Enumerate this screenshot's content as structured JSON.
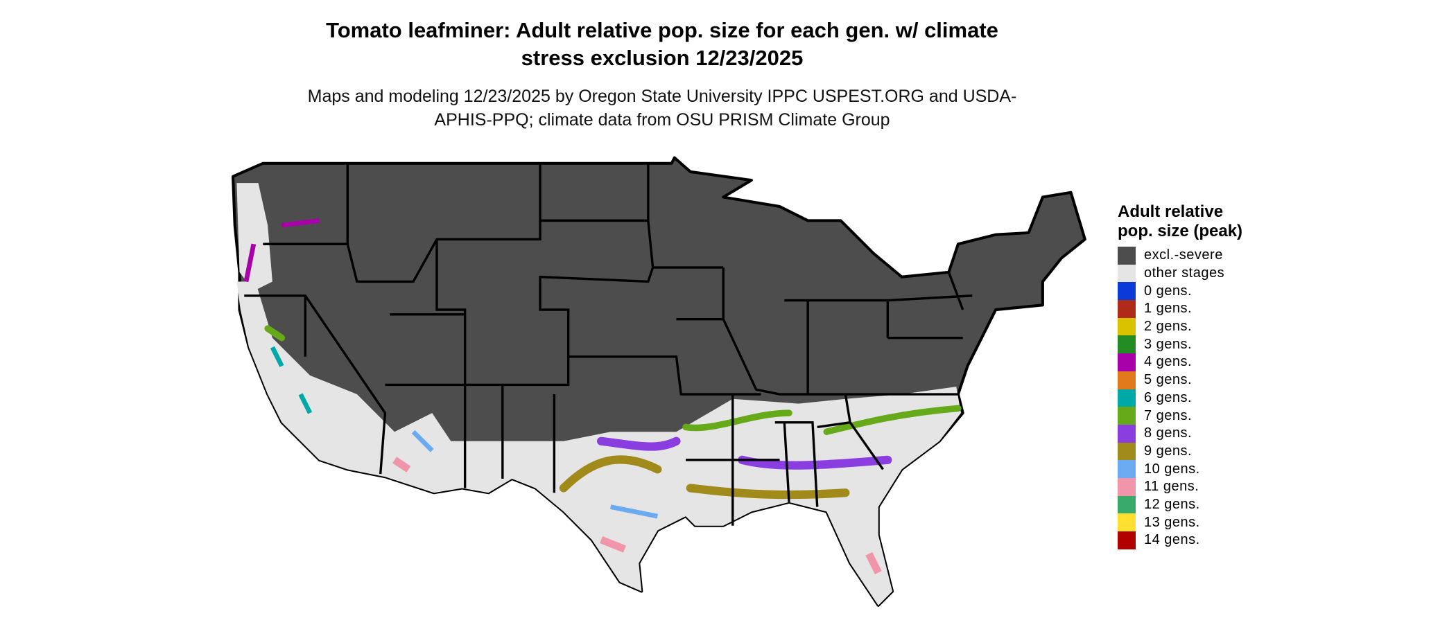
{
  "title": "Tomato leafminer: Adult relative pop. size for each gen. w/ climate stress exclusion 12/23/2025",
  "subtitle": "Maps and modeling 12/23/2025 by Oregon State University IPPC USPEST.ORG and USDA-APHIS-PPQ; climate data from OSU PRISM Climate Group",
  "legend": {
    "title": "Adult relative pop. size (peak)",
    "items": [
      {
        "label": "excl.-severe",
        "color": "#4d4d4d"
      },
      {
        "label": "other stages",
        "color": "#e5e5e5"
      },
      {
        "label": "0 gens.",
        "color": "#0a3ad8"
      },
      {
        "label": "1 gens.",
        "color": "#b02a1a"
      },
      {
        "label": "2 gens.",
        "color": "#d9c300"
      },
      {
        "label": "3 gens.",
        "color": "#238b23"
      },
      {
        "label": "4 gens.",
        "color": "#a800a8"
      },
      {
        "label": "5 gens.",
        "color": "#e07a1a"
      },
      {
        "label": "6 gens.",
        "color": "#00a8a8"
      },
      {
        "label": "7 gens.",
        "color": "#66aa1a"
      },
      {
        "label": "8 gens.",
        "color": "#8a3ee0"
      },
      {
        "label": "9 gens.",
        "color": "#a08a1a"
      },
      {
        "label": "10 gens.",
        "color": "#6aaaf0"
      },
      {
        "label": "11 gens.",
        "color": "#f095aa"
      },
      {
        "label": "12 gens.",
        "color": "#3aaa6a"
      },
      {
        "label": "13 gens.",
        "color": "#ffe030"
      },
      {
        "label": "14 gens.",
        "color": "#b00000"
      }
    ]
  }
}
